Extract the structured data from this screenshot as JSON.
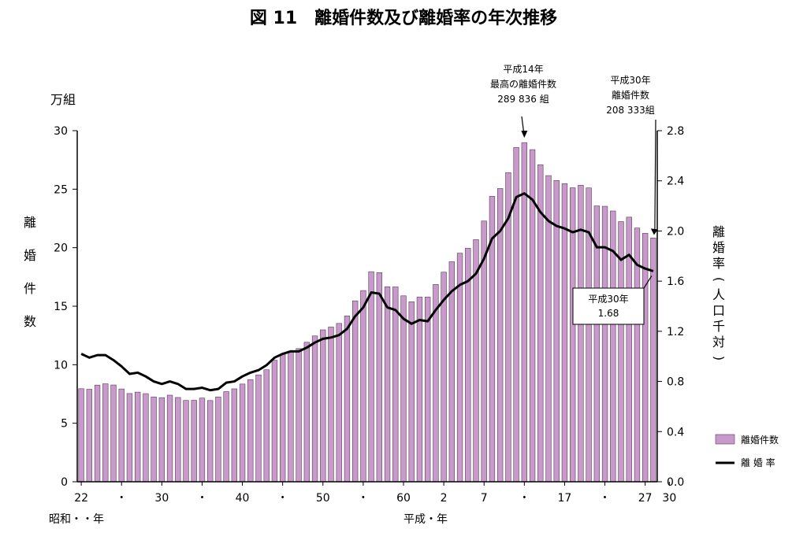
{
  "chart_data": {
    "type": "bar+line",
    "title": "図 11　離婚件数及び離婚率の年次推移",
    "y_left": {
      "unit": "万組",
      "label_chars": [
        "離",
        "婚",
        "件",
        "数"
      ],
      "ticks": [
        "0",
        "5",
        "10",
        "15",
        "20",
        "25",
        "30"
      ],
      "range": [
        0,
        30
      ]
    },
    "y_right": {
      "label_chars": [
        "離",
        "婚",
        "率",
        "(",
        "人",
        "口",
        "千",
        "対",
        ")"
      ],
      "ticks": [
        "0.0",
        "0.4",
        "0.8",
        "1.2",
        "1.6",
        "2.0",
        "2.4",
        "2.8"
      ],
      "range": [
        0,
        2.8
      ]
    },
    "x_tick_labels": [
      {
        "index": 0,
        "text": "22"
      },
      {
        "index": 5,
        "text": "・"
      },
      {
        "index": 10,
        "text": "30"
      },
      {
        "index": 15,
        "text": "・"
      },
      {
        "index": 20,
        "text": "40"
      },
      {
        "index": 25,
        "text": "・"
      },
      {
        "index": 30,
        "text": "50"
      },
      {
        "index": 35,
        "text": "・"
      },
      {
        "index": 40,
        "text": "60"
      },
      {
        "index": 45,
        "text": "2"
      },
      {
        "index": 50,
        "text": "7"
      },
      {
        "index": 55,
        "text": "・"
      },
      {
        "index": 60,
        "text": "17"
      },
      {
        "index": 65,
        "text": "・"
      },
      {
        "index": 70,
        "text": "27"
      },
      {
        "index": 73,
        "text": "30"
      }
    ],
    "era_labels": {
      "showa": "昭和・・年",
      "heisei": "平成・年"
    },
    "x": [
      1947,
      1948,
      1949,
      1950,
      1951,
      1952,
      1953,
      1954,
      1955,
      1956,
      1957,
      1958,
      1959,
      1960,
      1961,
      1962,
      1963,
      1964,
      1965,
      1966,
      1967,
      1968,
      1969,
      1970,
      1971,
      1972,
      1973,
      1974,
      1975,
      1976,
      1977,
      1978,
      1979,
      1980,
      1981,
      1982,
      1983,
      1984,
      1985,
      1986,
      1987,
      1988,
      1989,
      1990,
      1991,
      1992,
      1993,
      1994,
      1995,
      1996,
      1997,
      1998,
      1999,
      2000,
      2001,
      2002,
      2003,
      2004,
      2005,
      2006,
      2007,
      2008,
      2009,
      2010,
      2011,
      2012,
      2013,
      2014,
      2015,
      2016,
      2017,
      2018
    ],
    "series": [
      {
        "name": "離婚件数",
        "type": "bar",
        "color": "#c79ac9",
        "values": [
          7.95,
          7.9,
          8.26,
          8.37,
          8.27,
          7.93,
          7.54,
          7.66,
          7.53,
          7.25,
          7.19,
          7.4,
          7.2,
          6.95,
          6.96,
          7.15,
          6.94,
          7.25,
          7.7,
          7.94,
          8.35,
          8.73,
          9.13,
          9.57,
          10.39,
          10.89,
          11.16,
          11.38,
          11.92,
          12.46,
          12.98,
          13.22,
          13.53,
          14.17,
          15.46,
          16.34,
          17.95,
          17.87,
          16.66,
          16.65,
          15.89,
          15.38,
          15.78,
          15.78,
          16.86,
          17.91,
          18.8,
          19.53,
          19.95,
          20.69,
          22.28,
          24.39,
          25.06,
          26.42,
          28.57,
          28.98,
          28.38,
          27.09,
          26.16,
          25.74,
          25.48,
          25.12,
          25.34,
          25.11,
          23.57,
          23.54,
          23.14,
          22.23,
          22.61,
          21.68,
          21.23,
          20.83
        ]
      },
      {
        "name": "離婚率",
        "type": "line",
        "color": "#000000",
        "values": [
          1.02,
          0.99,
          1.01,
          1.01,
          0.97,
          0.92,
          0.86,
          0.87,
          0.84,
          0.8,
          0.78,
          0.8,
          0.78,
          0.74,
          0.74,
          0.75,
          0.73,
          0.74,
          0.79,
          0.8,
          0.84,
          0.87,
          0.89,
          0.93,
          0.99,
          1.02,
          1.04,
          1.04,
          1.07,
          1.11,
          1.14,
          1.15,
          1.17,
          1.22,
          1.32,
          1.39,
          1.51,
          1.5,
          1.39,
          1.37,
          1.3,
          1.26,
          1.29,
          1.28,
          1.37,
          1.45,
          1.52,
          1.57,
          1.6,
          1.66,
          1.78,
          1.94,
          2.0,
          2.1,
          2.27,
          2.3,
          2.25,
          2.15,
          2.08,
          2.04,
          2.02,
          1.99,
          2.01,
          1.99,
          1.87,
          1.87,
          1.84,
          1.77,
          1.81,
          1.73,
          1.7,
          1.68
        ]
      }
    ],
    "legend": {
      "position": "right",
      "bar": "離婚件数",
      "line": "離 婚 率"
    },
    "annotations": {
      "peak": {
        "lines": [
          "平成14年",
          "最高の離婚件数",
          "289 836 組"
        ],
        "index": 55
      },
      "latest": {
        "lines": [
          "平成30年",
          "離婚件数",
          "208 333組"
        ],
        "index": 71
      },
      "rate": {
        "lines": [
          "平成30年",
          "1.68"
        ],
        "index": 71
      }
    }
  }
}
